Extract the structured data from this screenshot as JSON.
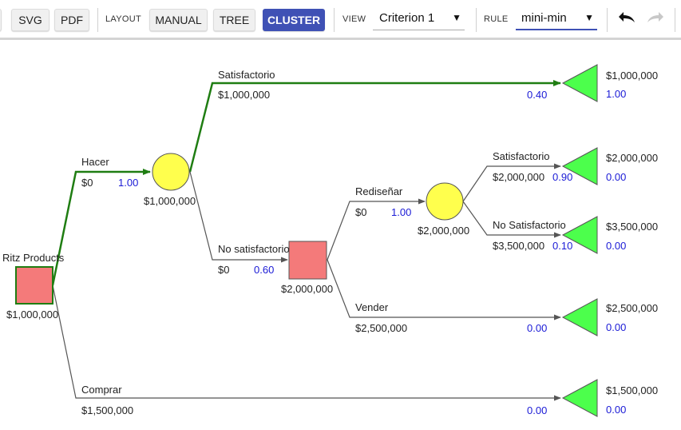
{
  "toolbar": {
    "svg_label": "SVG",
    "pdf_label": "PDF",
    "layout_label": "LAYOUT",
    "layout_modes": [
      "MANUAL",
      "TREE",
      "CLUSTER"
    ],
    "active_layout": "CLUSTER",
    "view_label": "VIEW",
    "view_value": "Criterion 1",
    "rule_label": "RULE",
    "rule_value": "mini-min",
    "undo_icon": "undo-icon",
    "redo_icon": "redo-icon",
    "dropdown_icon": "▼"
  },
  "colors": {
    "decision_fill": "#f47a7a",
    "chance_fill": "#ffff4d",
    "terminal_fill": "#4cff4c",
    "optimal_edge": "#1f7d12",
    "probability_text": "#1a1ad6",
    "active_button": "#3f51b5"
  },
  "tree": {
    "root": {
      "label": "Ritz Products",
      "value": "$1,000,000"
    },
    "edges": {
      "hacer": {
        "label": "Hacer",
        "payoff": "$0",
        "prob": "1.00"
      },
      "comprar": {
        "label": "Comprar",
        "payoff": "$1,500,000",
        "prob": "0.00"
      },
      "satisfactorio_top": {
        "label": "Satisfactorio",
        "payoff": "$1,000,000",
        "prob": "0.40"
      },
      "no_satisfactorio": {
        "label": "No satisfactorio",
        "payoff": "$0",
        "prob": "0.60"
      },
      "redisenar": {
        "label": "Rediseñar",
        "payoff": "$0",
        "prob": "1.00"
      },
      "vender": {
        "label": "Vender",
        "payoff": "$2,500,000",
        "prob": "0.00"
      },
      "satisfactorio_2": {
        "label": "Satisfactorio",
        "payoff": "$2,000,000",
        "prob": "0.90"
      },
      "no_satisfactorio_2": {
        "label": "No Satisfactorio",
        "payoff": "$3,500,000",
        "prob": "0.10"
      }
    },
    "chance1": {
      "value": "$1,000,000"
    },
    "decision2": {
      "value": "$2,000,000"
    },
    "chance2": {
      "value": "$2,000,000"
    },
    "terminals": [
      {
        "value": "$1,000,000",
        "prob": "1.00"
      },
      {
        "value": "$2,000,000",
        "prob": "0.00"
      },
      {
        "value": "$3,500,000",
        "prob": "0.00"
      },
      {
        "value": "$2,500,000",
        "prob": "0.00"
      },
      {
        "value": "$1,500,000",
        "prob": "0.00"
      }
    ]
  }
}
